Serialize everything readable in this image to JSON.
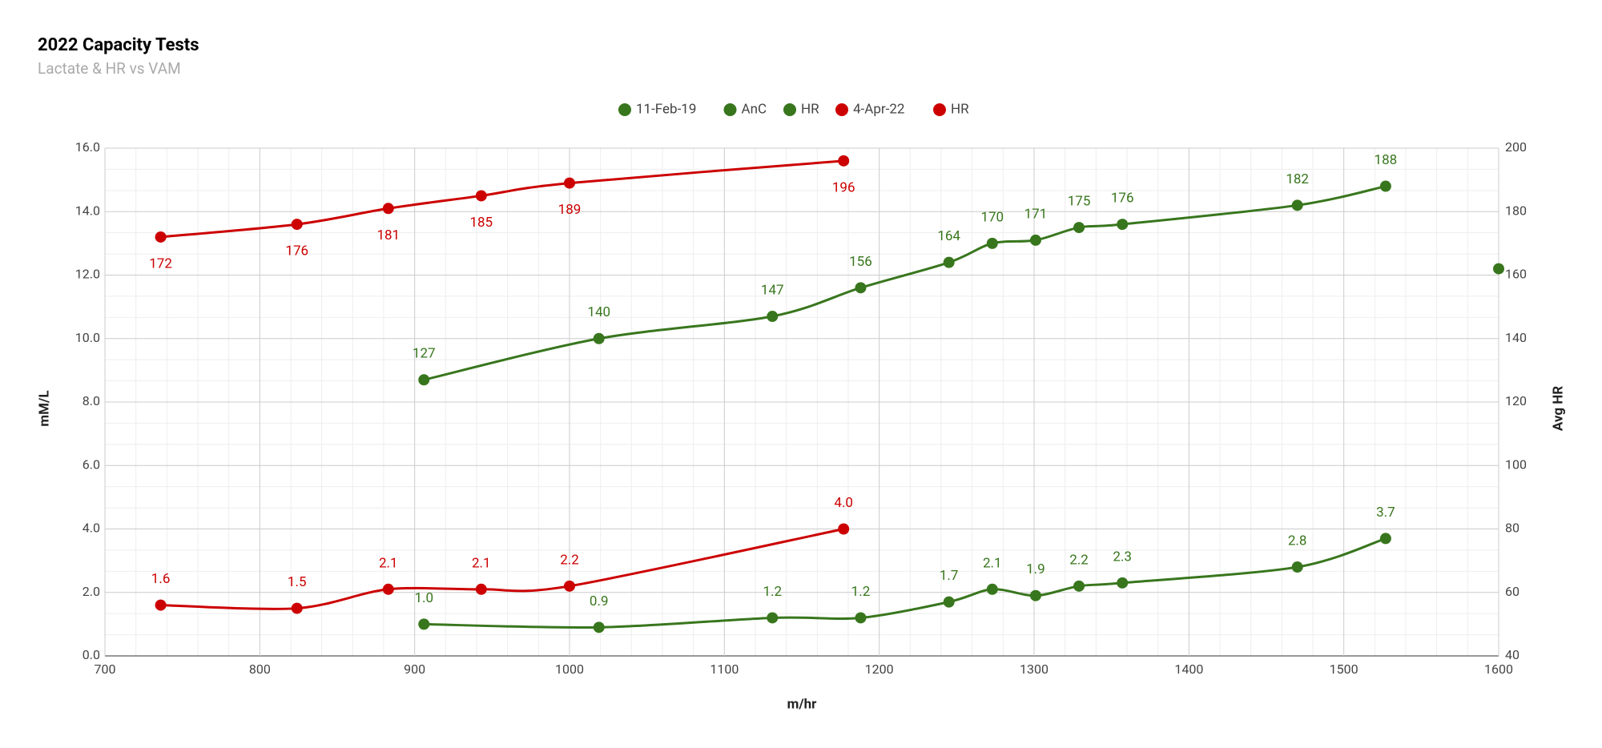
{
  "chart_data": {
    "type": "line",
    "title": "2022 Capacity Tests",
    "subtitle": "Lactate & HR vs VAM",
    "x_label": "m/hr",
    "y_label": "mM/L",
    "y2_label": "Avg HR",
    "xlim": [
      700,
      1600
    ],
    "xticks": [
      700,
      800,
      900,
      1000,
      1100,
      1200,
      1300,
      1400,
      1500,
      1600
    ],
    "ylim": [
      0,
      16
    ],
    "yticks": [
      {
        "value": 0,
        "label": "0.0"
      },
      {
        "value": 2,
        "label": "2.0"
      },
      {
        "value": 4,
        "label": "4.0"
      },
      {
        "value": 6,
        "label": "6.0"
      },
      {
        "value": 8,
        "label": "8.0"
      },
      {
        "value": 10,
        "label": "10.0"
      },
      {
        "value": 12,
        "label": "12.0"
      },
      {
        "value": 14,
        "label": "14.0"
      },
      {
        "value": 16,
        "label": "16.0"
      }
    ],
    "y2lim": [
      40,
      200
    ],
    "y2ticks": [
      40,
      60,
      80,
      100,
      120,
      140,
      160,
      180,
      200
    ],
    "grid": true,
    "legend": "top",
    "series": [
      {
        "name": "11-Feb-19",
        "color": "#38761d",
        "x": [
          1600
        ],
        "values": [
          12.2
        ]
      },
      {
        "name": "AnC",
        "color": "#38761d",
        "x": [
          906,
          1019,
          1131,
          1188,
          1245,
          1273,
          1301,
          1329,
          1357,
          1470,
          1527
        ],
        "values": [
          1.0,
          0.9,
          1.2,
          1.2,
          1.7,
          2.1,
          1.9,
          2.2,
          2.3,
          2.8,
          3.7
        ],
        "value_labels": [
          "1.0",
          "0.9",
          "1.2",
          "1.2",
          "1.7",
          "2.1",
          "1.9",
          "2.2",
          "2.3",
          "2.8",
          "3.7"
        ]
      },
      {
        "name": "HR",
        "color": "#38761d",
        "axis": "y2",
        "x": [
          906,
          1019,
          1131,
          1188,
          1245,
          1273,
          1301,
          1329,
          1357,
          1470,
          1527
        ],
        "values": [
          127,
          140,
          147,
          156,
          164,
          170,
          171,
          175,
          176,
          182,
          188
        ]
      },
      {
        "name": "4-Apr-22",
        "color": "#cc0000",
        "x": [
          736,
          824,
          883,
          943,
          1000,
          1177
        ],
        "values": [
          1.6,
          1.5,
          2.1,
          2.1,
          2.2,
          4.0
        ],
        "value_labels": [
          "1.6",
          "1.5",
          "2.1",
          "2.1",
          "2.2",
          "4.0"
        ]
      },
      {
        "name": "HR",
        "color": "#cc0000",
        "axis": "y2",
        "x": [
          736,
          824,
          883,
          943,
          1000,
          1177
        ],
        "values": [
          172,
          176,
          181,
          185,
          189,
          196
        ]
      }
    ]
  }
}
